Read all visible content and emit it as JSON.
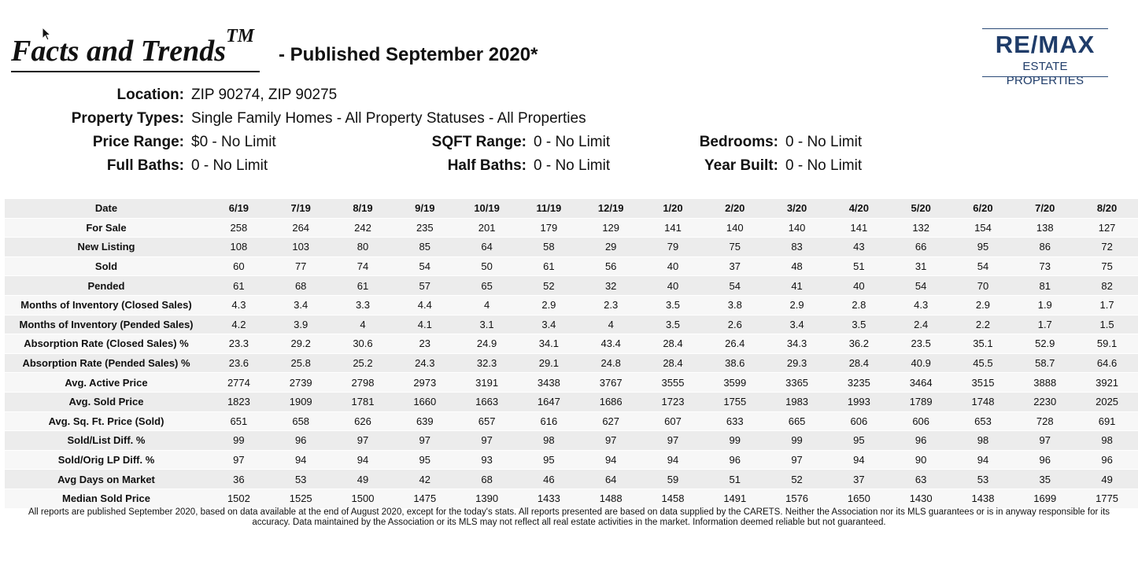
{
  "header": {
    "brand": "Facts and Trends",
    "brand_tm": "TM",
    "published": "- Published September 2020*"
  },
  "logo": {
    "main": "RE/MAX",
    "sub": "ESTATE PROPERTIES",
    "color": "#1f3c69"
  },
  "criteria": {
    "location_label": "Location:",
    "location_value": "ZIP 90274, ZIP 90275",
    "property_types_label": "Property Types:",
    "property_types_value": "Single Family Homes - All Property Statuses - All Properties",
    "price_range_label": "Price Range:",
    "price_range_value": "$0 - No Limit",
    "sqft_range_label": "SQFT Range:",
    "sqft_range_value": "0 - No Limit",
    "bedrooms_label": "Bedrooms:",
    "bedrooms_value": "0 - No Limit",
    "full_baths_label": "Full Baths:",
    "full_baths_value": "0 - No Limit",
    "half_baths_label": "Half Baths:",
    "half_baths_value": "0 - No Limit",
    "year_built_label": "Year Built:",
    "year_built_value": "0 - No Limit"
  },
  "table": {
    "date_label": "Date",
    "columns": [
      "6/19",
      "7/19",
      "8/19",
      "9/19",
      "10/19",
      "11/19",
      "12/19",
      "1/20",
      "2/20",
      "3/20",
      "4/20",
      "5/20",
      "6/20",
      "7/20",
      "8/20"
    ],
    "rows": [
      {
        "label": "For Sale",
        "values": [
          "258",
          "264",
          "242",
          "235",
          "201",
          "179",
          "129",
          "141",
          "140",
          "140",
          "141",
          "132",
          "154",
          "138",
          "127"
        ]
      },
      {
        "label": "New Listing",
        "values": [
          "108",
          "103",
          "80",
          "85",
          "64",
          "58",
          "29",
          "79",
          "75",
          "83",
          "43",
          "66",
          "95",
          "86",
          "72"
        ]
      },
      {
        "label": "Sold",
        "values": [
          "60",
          "77",
          "74",
          "54",
          "50",
          "61",
          "56",
          "40",
          "37",
          "48",
          "51",
          "31",
          "54",
          "73",
          "75"
        ]
      },
      {
        "label": "Pended",
        "values": [
          "61",
          "68",
          "61",
          "57",
          "65",
          "52",
          "32",
          "40",
          "54",
          "41",
          "40",
          "54",
          "70",
          "81",
          "82"
        ]
      },
      {
        "label": "Months of Inventory (Closed Sales)",
        "values": [
          "4.3",
          "3.4",
          "3.3",
          "4.4",
          "4",
          "2.9",
          "2.3",
          "3.5",
          "3.8",
          "2.9",
          "2.8",
          "4.3",
          "2.9",
          "1.9",
          "1.7"
        ]
      },
      {
        "label": "Months of Inventory (Pended Sales)",
        "values": [
          "4.2",
          "3.9",
          "4",
          "4.1",
          "3.1",
          "3.4",
          "4",
          "3.5",
          "2.6",
          "3.4",
          "3.5",
          "2.4",
          "2.2",
          "1.7",
          "1.5"
        ]
      },
      {
        "label": "Absorption Rate (Closed Sales) %",
        "values": [
          "23.3",
          "29.2",
          "30.6",
          "23",
          "24.9",
          "34.1",
          "43.4",
          "28.4",
          "26.4",
          "34.3",
          "36.2",
          "23.5",
          "35.1",
          "52.9",
          "59.1"
        ]
      },
      {
        "label": "Absorption Rate (Pended Sales) %",
        "values": [
          "23.6",
          "25.8",
          "25.2",
          "24.3",
          "32.3",
          "29.1",
          "24.8",
          "28.4",
          "38.6",
          "29.3",
          "28.4",
          "40.9",
          "45.5",
          "58.7",
          "64.6"
        ]
      },
      {
        "label": "Avg. Active Price",
        "values": [
          "2774",
          "2739",
          "2798",
          "2973",
          "3191",
          "3438",
          "3767",
          "3555",
          "3599",
          "3365",
          "3235",
          "3464",
          "3515",
          "3888",
          "3921"
        ]
      },
      {
        "label": "Avg. Sold Price",
        "values": [
          "1823",
          "1909",
          "1781",
          "1660",
          "1663",
          "1647",
          "1686",
          "1723",
          "1755",
          "1983",
          "1993",
          "1789",
          "1748",
          "2230",
          "2025"
        ]
      },
      {
        "label": "Avg. Sq. Ft. Price (Sold)",
        "values": [
          "651",
          "658",
          "626",
          "639",
          "657",
          "616",
          "627",
          "607",
          "633",
          "665",
          "606",
          "606",
          "653",
          "728",
          "691"
        ]
      },
      {
        "label": "Sold/List Diff. %",
        "values": [
          "99",
          "96",
          "97",
          "97",
          "97",
          "98",
          "97",
          "97",
          "99",
          "99",
          "95",
          "96",
          "98",
          "97",
          "98"
        ]
      },
      {
        "label": "Sold/Orig LP Diff. %",
        "values": [
          "97",
          "94",
          "94",
          "95",
          "93",
          "95",
          "94",
          "94",
          "96",
          "97",
          "94",
          "90",
          "94",
          "96",
          "96"
        ]
      },
      {
        "label": "Avg Days on Market",
        "values": [
          "36",
          "53",
          "49",
          "42",
          "68",
          "46",
          "64",
          "59",
          "51",
          "52",
          "37",
          "63",
          "53",
          "35",
          "49"
        ]
      },
      {
        "label": "Median Sold Price",
        "values": [
          "1502",
          "1525",
          "1500",
          "1475",
          "1390",
          "1433",
          "1488",
          "1458",
          "1491",
          "1576",
          "1650",
          "1430",
          "1438",
          "1699",
          "1775"
        ]
      }
    ]
  },
  "footer": {
    "text": "All reports are published September 2020, based on data available at the end of August 2020, except for the today's stats. All reports presented are based on data supplied by the CARETS. Neither the Association nor its MLS guarantees or is in anyway responsible for its accuracy. Data maintained by the Association or its MLS may not reflect all real estate activities in the market. Information deemed reliable but not guaranteed."
  }
}
